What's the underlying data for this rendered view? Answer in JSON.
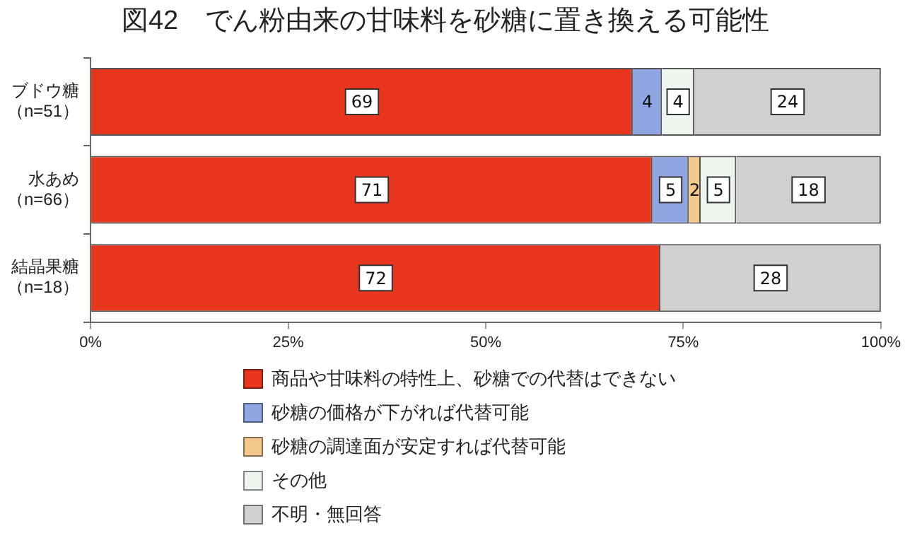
{
  "chart_data": {
    "type": "bar",
    "orientation": "horizontal",
    "stacked": true,
    "title": "図42　でん粉由来の甘味料を砂糖に置き換える可能性",
    "categories": [
      "ブドウ糖（n=51）",
      "水あめ（n=66）",
      "結晶果糖（n=18）"
    ],
    "series": [
      {
        "name": "商品や甘味料の特性上、砂糖での代替はできない",
        "color": "#e8351e",
        "values": [
          68.6,
          71.1,
          72.1
        ],
        "value_labels": [
          "69",
          "71",
          "72"
        ]
      },
      {
        "name": "砂糖の価格が下がれば代替可能",
        "color": "#8fa6e2",
        "values": [
          3.7,
          4.6,
          null
        ],
        "value_labels": [
          "4",
          "5",
          null
        ]
      },
      {
        "name": "砂糖の調達面が安定すれば代替可能",
        "color": "#f5c98a",
        "values": [
          null,
          1.5,
          null
        ],
        "value_labels": [
          null,
          "2",
          null
        ]
      },
      {
        "name": "その他",
        "color": "#eef5ee",
        "values": [
          4.1,
          4.5,
          null
        ],
        "value_labels": [
          "4",
          "5",
          null
        ]
      },
      {
        "name": "不明・無回答",
        "color": "#d0d0d0",
        "values": [
          23.6,
          18.3,
          27.9
        ],
        "value_labels": [
          "24",
          "18",
          "28"
        ]
      }
    ],
    "xlim": [
      0,
      100
    ],
    "xticks": [
      {
        "value": 0,
        "label": "0%"
      },
      {
        "value": 25,
        "label": "25%"
      },
      {
        "value": 50,
        "label": "50%"
      },
      {
        "value": 75,
        "label": "75%"
      },
      {
        "value": 100,
        "label": "100%"
      }
    ],
    "grid": false,
    "legend": "bottom"
  }
}
